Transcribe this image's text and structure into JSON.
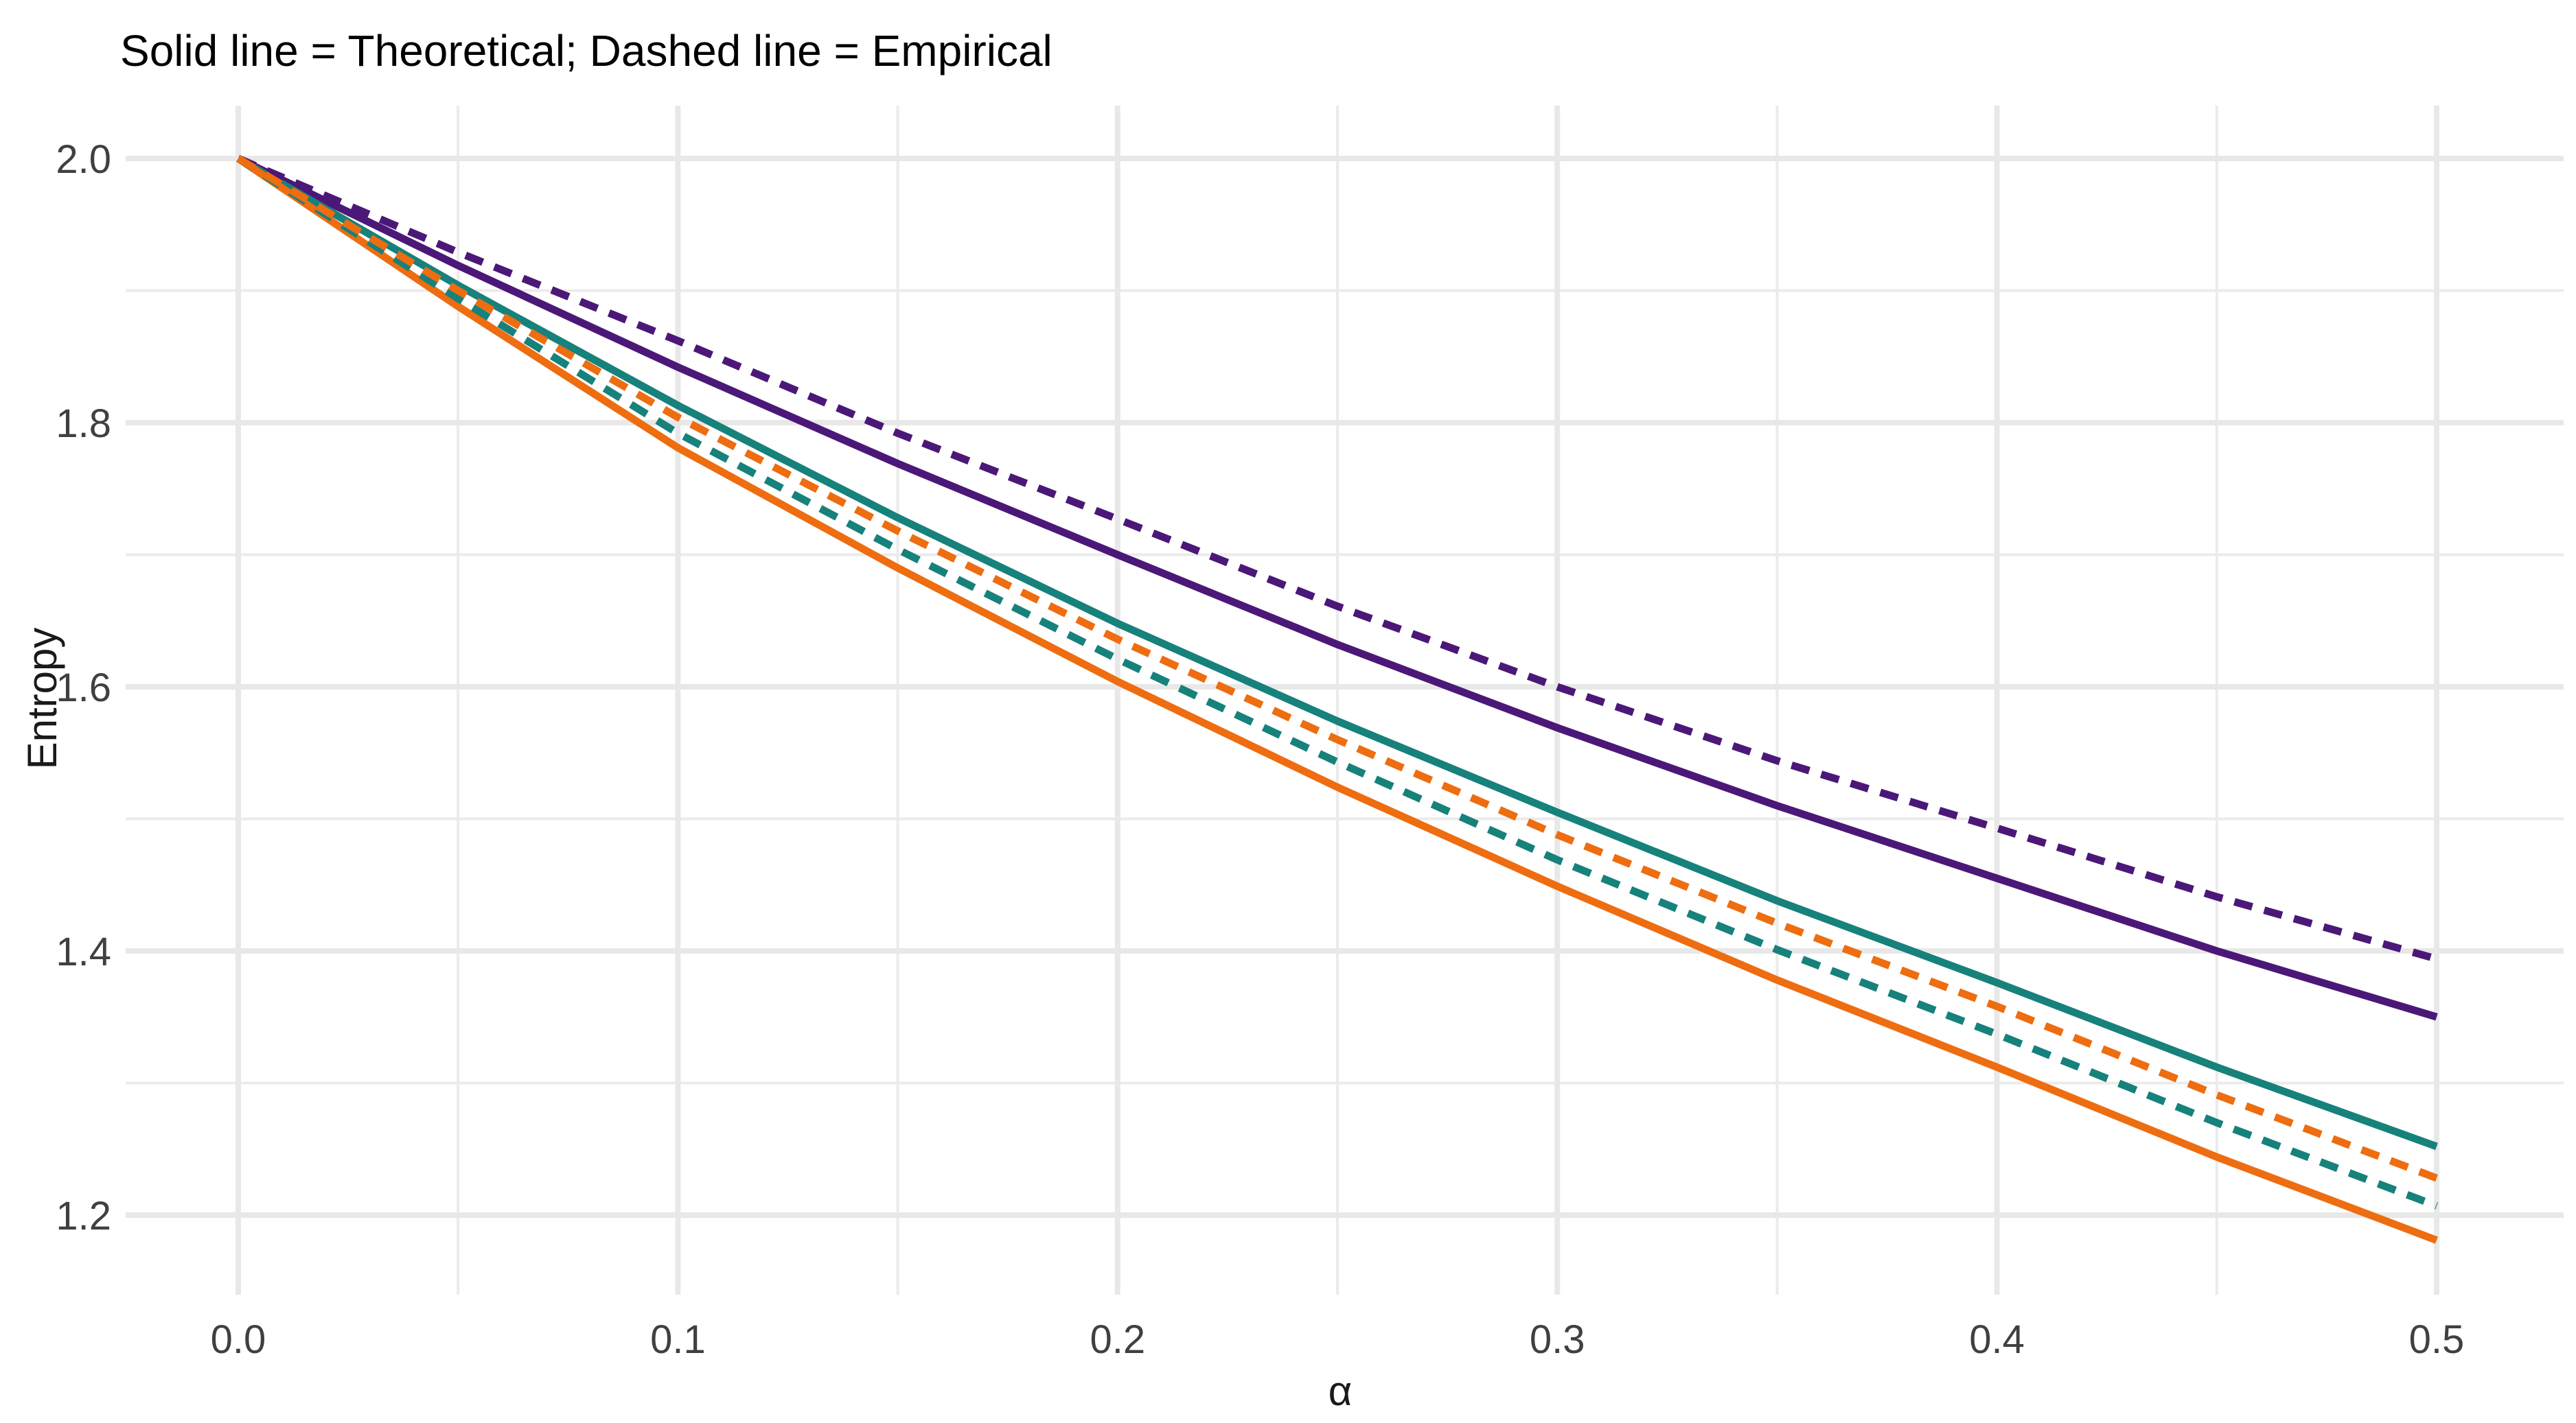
{
  "title": "Solid line = Theoretical; Dashed line = Empirical",
  "colors": {
    "purple": "#4B1878",
    "teal": "#17817B",
    "orange": "#ED6D10",
    "grid_major": "#E8E8E8",
    "grid_minor": "#EBEBEB",
    "tick_text": "#404040",
    "title_text": "#000000",
    "background": "#FFFFFF"
  },
  "chart_data": {
    "type": "line",
    "title": "Solid line = Theoretical; Dashed line = Empirical",
    "xlabel": "α",
    "ylabel": "Entropy",
    "grid": true,
    "legend_position": "none",
    "xlim": [
      -0.025,
      0.529
    ],
    "ylim": [
      1.14,
      2.04
    ],
    "x_ticks": {
      "values": [
        0.0,
        0.1,
        0.2,
        0.3,
        0.4,
        0.5
      ],
      "labels": [
        "0.0",
        "0.1",
        "0.2",
        "0.3",
        "0.4",
        "0.5"
      ]
    },
    "x_minor": [
      0.05,
      0.15,
      0.25,
      0.35,
      0.45
    ],
    "y_ticks": {
      "values": [
        2.0,
        1.8,
        1.6,
        1.4,
        1.2
      ],
      "labels": [
        "2.0",
        "1.8",
        "1.6",
        "1.4",
        "1.2"
      ]
    },
    "y_minor": [
      1.9,
      1.7,
      1.5,
      1.3
    ],
    "x": [
      0.0,
      0.05,
      0.1,
      0.15,
      0.2,
      0.25,
      0.3,
      0.35,
      0.4,
      0.45,
      0.5
    ],
    "series": [
      {
        "name": "Purple — Theoretical",
        "color_key": "purple",
        "color": "#4B1878",
        "linetype": "solid",
        "values": [
          2.0,
          1.919,
          1.842,
          1.769,
          1.7,
          1.632,
          1.569,
          1.51,
          1.455,
          1.4,
          1.35
        ]
      },
      {
        "name": "Teal — Theoretical",
        "color_key": "teal",
        "color": "#17817B",
        "linetype": "solid",
        "values": [
          2.0,
          1.904,
          1.813,
          1.728,
          1.648,
          1.574,
          1.505,
          1.438,
          1.376,
          1.312,
          1.252
        ]
      },
      {
        "name": "Orange — Theoretical",
        "color_key": "orange",
        "color": "#ED6D10",
        "linetype": "solid",
        "values": [
          2.0,
          1.888,
          1.781,
          1.69,
          1.604,
          1.524,
          1.449,
          1.378,
          1.312,
          1.244,
          1.181
        ]
      },
      {
        "name": "Purple — Empirical",
        "color_key": "purple",
        "color": "#4B1878",
        "linetype": "dashed",
        "values": [
          2.0,
          1.929,
          1.862,
          1.792,
          1.727,
          1.661,
          1.6,
          1.544,
          1.493,
          1.441,
          1.394
        ]
      },
      {
        "name": "Teal — Empirical",
        "color_key": "teal",
        "color": "#17817B",
        "linetype": "dashed",
        "values": [
          2.0,
          1.894,
          1.792,
          1.704,
          1.621,
          1.543,
          1.469,
          1.401,
          1.337,
          1.27,
          1.207
        ]
      },
      {
        "name": "Orange — Empirical",
        "color_key": "orange",
        "color": "#ED6D10",
        "linetype": "dashed",
        "values": [
          2.0,
          1.9,
          1.804,
          1.718,
          1.636,
          1.56,
          1.488,
          1.421,
          1.358,
          1.291,
          1.228
        ]
      }
    ]
  }
}
